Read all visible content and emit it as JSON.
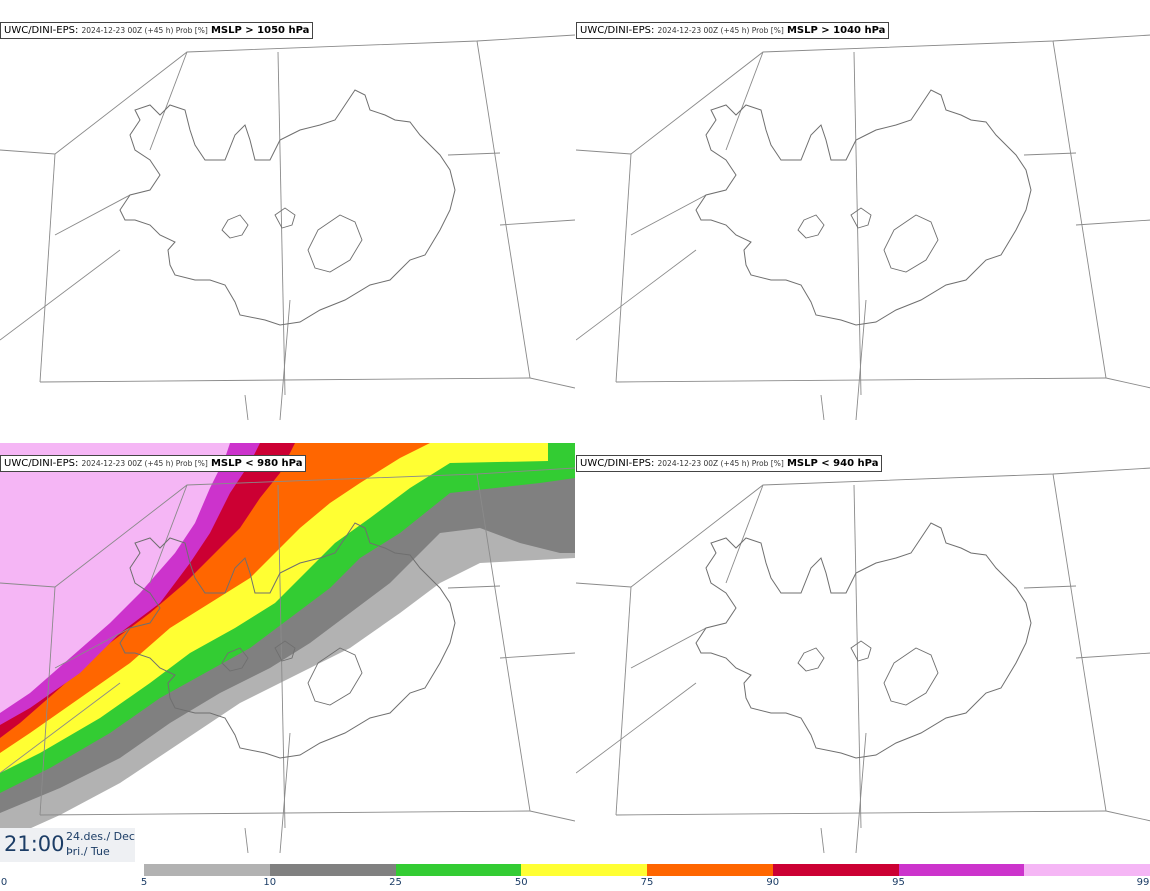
{
  "panels": [
    {
      "source": "UWC/DINI-EPS",
      "run": "2024-12-23 00Z (+45 h) Prob [%]",
      "param": "MSLP > 1050 hPa",
      "filled": false
    },
    {
      "source": "UWC/DINI-EPS",
      "run": "2024-12-23 00Z (+45 h) Prob [%]",
      "param": "MSLP > 1040 hPa",
      "filled": false
    },
    {
      "source": "UWC/DINI-EPS",
      "run": "2024-12-23 00Z (+45 h) Prob [%]",
      "param": "MSLP < 980 hPa",
      "filled": true
    },
    {
      "source": "UWC/DINI-EPS",
      "run": "2024-12-23 00Z (+45 h) Prob [%]",
      "param": "MSLP < 940 hPa",
      "filled": false
    }
  ],
  "valid_time": {
    "time": "21:00",
    "date_line1": "24.des./ Dec",
    "date_line2": "Þri./ Tue"
  },
  "legend": {
    "ticks": [
      "0",
      "5",
      "10",
      "25",
      "50",
      "75",
      "90",
      "95",
      "99"
    ],
    "colors": [
      "#b2b2b2",
      "#808080",
      "#33cc33",
      "#ffff33",
      "#ff6600",
      "#cc0033",
      "#cc33cc",
      "#f5b6f5"
    ]
  }
}
